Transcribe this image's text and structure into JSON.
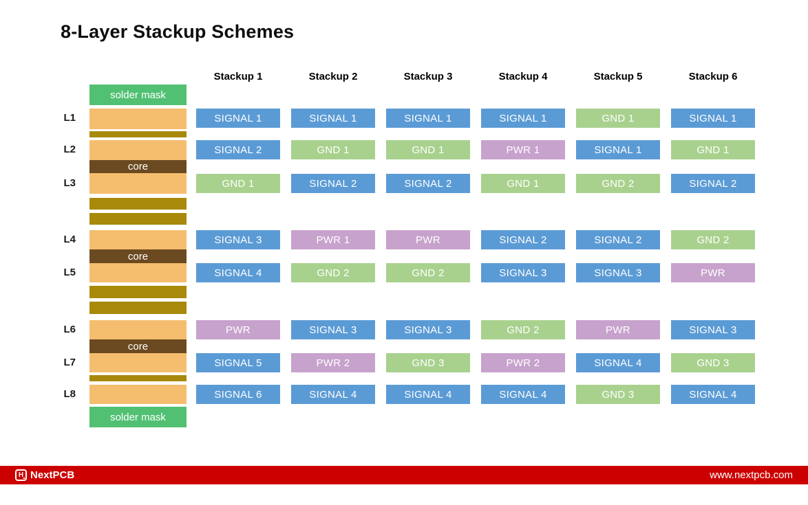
{
  "title": "8-Layer Stackup Schemes",
  "colors": {
    "signal": "#5B9BD5",
    "gnd": "#A9D18E",
    "pwr": "#C7A2CC",
    "solder": "#51C073",
    "copper": "#F4BE6E",
    "prepreg": "#A8890A",
    "core": "#6B4A21",
    "footer": "#CC0000"
  },
  "stack": {
    "solder_mask_label": "solder mask",
    "core_label": "core"
  },
  "columns": [
    "Stackup 1",
    "Stackup 2",
    "Stackup 3",
    "Stackup 4",
    "Stackup 5",
    "Stackup 6"
  ],
  "grid": {
    "rows": [
      {
        "layer": "L1",
        "cells": [
          {
            "label": "SIGNAL 1",
            "type": "signal"
          },
          {
            "label": "SIGNAL 1",
            "type": "signal"
          },
          {
            "label": "SIGNAL 1",
            "type": "signal"
          },
          {
            "label": "SIGNAL 1",
            "type": "signal"
          },
          {
            "label": "GND 1",
            "type": "gnd"
          },
          {
            "label": "SIGNAL 1",
            "type": "signal"
          }
        ]
      },
      {
        "layer": "L2",
        "cells": [
          {
            "label": "SIGNAL 2",
            "type": "signal"
          },
          {
            "label": "GND 1",
            "type": "gnd"
          },
          {
            "label": "GND 1",
            "type": "gnd"
          },
          {
            "label": "PWR 1",
            "type": "pwr"
          },
          {
            "label": "SIGNAL 1",
            "type": "signal"
          },
          {
            "label": "GND 1",
            "type": "gnd"
          }
        ]
      },
      {
        "layer": "L3",
        "cells": [
          {
            "label": "GND 1",
            "type": "gnd"
          },
          {
            "label": "SIGNAL 2",
            "type": "signal"
          },
          {
            "label": "SIGNAL 2",
            "type": "signal"
          },
          {
            "label": "GND 1",
            "type": "gnd"
          },
          {
            "label": "GND 2",
            "type": "gnd"
          },
          {
            "label": "SIGNAL 2",
            "type": "signal"
          }
        ]
      },
      {
        "layer": "L4",
        "cells": [
          {
            "label": "SIGNAL 3",
            "type": "signal"
          },
          {
            "label": "PWR 1",
            "type": "pwr"
          },
          {
            "label": "PWR",
            "type": "pwr"
          },
          {
            "label": "SIGNAL 2",
            "type": "signal"
          },
          {
            "label": "SIGNAL 2",
            "type": "signal"
          },
          {
            "label": "GND 2",
            "type": "gnd"
          }
        ]
      },
      {
        "layer": "L5",
        "cells": [
          {
            "label": "SIGNAL 4",
            "type": "signal"
          },
          {
            "label": "GND 2",
            "type": "gnd"
          },
          {
            "label": "GND 2",
            "type": "gnd"
          },
          {
            "label": "SIGNAL 3",
            "type": "signal"
          },
          {
            "label": "SIGNAL 3",
            "type": "signal"
          },
          {
            "label": "PWR",
            "type": "pwr"
          }
        ]
      },
      {
        "layer": "L6",
        "cells": [
          {
            "label": "PWR",
            "type": "pwr"
          },
          {
            "label": "SIGNAL 3",
            "type": "signal"
          },
          {
            "label": "SIGNAL 3",
            "type": "signal"
          },
          {
            "label": "GND 2",
            "type": "gnd"
          },
          {
            "label": "PWR",
            "type": "pwr"
          },
          {
            "label": "SIGNAL 3",
            "type": "signal"
          }
        ]
      },
      {
        "layer": "L7",
        "cells": [
          {
            "label": "SIGNAL 5",
            "type": "signal"
          },
          {
            "label": "PWR 2",
            "type": "pwr"
          },
          {
            "label": "GND 3",
            "type": "gnd"
          },
          {
            "label": "PWR 2",
            "type": "pwr"
          },
          {
            "label": "SIGNAL 4",
            "type": "signal"
          },
          {
            "label": "GND 3",
            "type": "gnd"
          }
        ]
      },
      {
        "layer": "L8",
        "cells": [
          {
            "label": "SIGNAL 6",
            "type": "signal"
          },
          {
            "label": "SIGNAL 4",
            "type": "signal"
          },
          {
            "label": "SIGNAL 4",
            "type": "signal"
          },
          {
            "label": "SIGNAL 4",
            "type": "signal"
          },
          {
            "label": "GND 3",
            "type": "gnd"
          },
          {
            "label": "SIGNAL 4",
            "type": "signal"
          }
        ]
      }
    ]
  },
  "footer": {
    "logo_glyph": "H",
    "brand": "NextPCB",
    "url": "www.nextpcb.com"
  }
}
